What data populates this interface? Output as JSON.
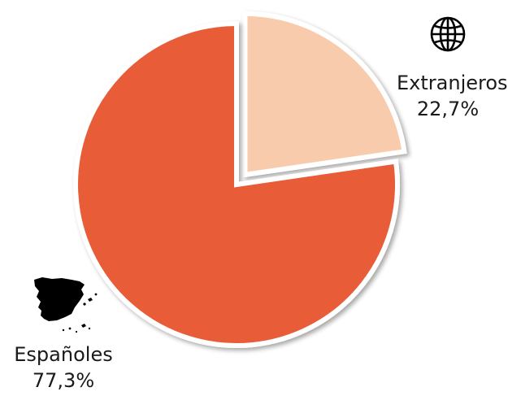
{
  "chart_data": {
    "type": "pie",
    "title": "",
    "slices": [
      {
        "label": "Extranjeros",
        "value": 22.7,
        "display": "22,7%",
        "color": "#F8CBAD",
        "exploded": true,
        "icon": "globe-icon"
      },
      {
        "label": "Españoles",
        "value": 77.3,
        "display": "77,3%",
        "color": "#E85C38",
        "exploded": false,
        "icon": "spain-map-icon"
      }
    ],
    "start_angle": "12 o'clock",
    "direction": "clockwise",
    "legend": "none"
  }
}
